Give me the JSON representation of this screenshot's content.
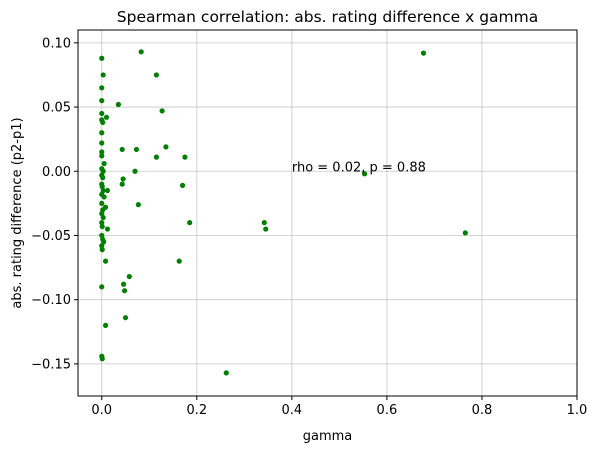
{
  "chart_data": {
    "type": "scatter",
    "title": "Spearman correlation: abs. rating difference x gamma",
    "xlabel": "gamma",
    "ylabel": "abs. rating difference (p2-p1)",
    "xlim": [
      -0.05,
      1.0
    ],
    "ylim": [
      -0.175,
      0.11
    ],
    "xticks": [
      0.0,
      0.2,
      0.4,
      0.6,
      0.8,
      1.0
    ],
    "xtick_labels": [
      "0.0",
      "0.2",
      "0.4",
      "0.6",
      "0.8",
      "1.0"
    ],
    "yticks": [
      -0.15,
      -0.1,
      -0.05,
      0.0,
      0.05,
      0.1
    ],
    "ytick_labels": [
      "−0.15",
      "−0.10",
      "−0.05",
      "0.00",
      "0.05",
      "0.10"
    ],
    "grid": true,
    "marker_color": "#008000",
    "annotation": {
      "text": "rho = 0.02, p = 0.88",
      "x": 0.4,
      "y": 0.0
    },
    "series": [
      {
        "points": [
          [
            0.0,
            0.088
          ],
          [
            0.003,
            0.075
          ],
          [
            0.0,
            0.065
          ],
          [
            0.0,
            0.055
          ],
          [
            0.0,
            0.045
          ],
          [
            0.0,
            0.04
          ],
          [
            0.002,
            0.038
          ],
          [
            0.01,
            0.042
          ],
          [
            0.0,
            0.03
          ],
          [
            0.0,
            0.022
          ],
          [
            0.0,
            0.015
          ],
          [
            0.0,
            0.012
          ],
          [
            0.005,
            0.006
          ],
          [
            0.0,
            0.002
          ],
          [
            0.003,
            0.0
          ],
          [
            0.0,
            -0.003
          ],
          [
            0.002,
            -0.005
          ],
          [
            0.0,
            -0.01
          ],
          [
            0.001,
            -0.012
          ],
          [
            0.003,
            -0.015
          ],
          [
            0.0,
            -0.018
          ],
          [
            0.005,
            -0.02
          ],
          [
            0.0,
            -0.025
          ],
          [
            0.002,
            -0.03
          ],
          [
            0.008,
            -0.028
          ],
          [
            0.0,
            -0.033
          ],
          [
            0.003,
            -0.036
          ],
          [
            0.0,
            -0.04
          ],
          [
            0.001,
            -0.043
          ],
          [
            0.012,
            -0.045
          ],
          [
            0.0,
            -0.05
          ],
          [
            0.002,
            -0.053
          ],
          [
            0.004,
            -0.055
          ],
          [
            0.0,
            -0.058
          ],
          [
            0.001,
            -0.061
          ],
          [
            0.008,
            -0.07
          ],
          [
            0.0,
            -0.09
          ],
          [
            0.008,
            -0.12
          ],
          [
            0.0,
            -0.144
          ],
          [
            0.001,
            -0.146
          ],
          [
            0.012,
            -0.015
          ],
          [
            0.035,
            0.052
          ],
          [
            0.043,
            0.017
          ],
          [
            0.045,
            -0.006
          ],
          [
            0.043,
            -0.01
          ],
          [
            0.046,
            -0.088
          ],
          [
            0.048,
            -0.093
          ],
          [
            0.05,
            -0.114
          ],
          [
            0.058,
            -0.082
          ],
          [
            0.07,
            0.0
          ],
          [
            0.073,
            0.017
          ],
          [
            0.077,
            -0.026
          ],
          [
            0.083,
            0.093
          ],
          [
            0.115,
            0.075
          ],
          [
            0.115,
            0.011
          ],
          [
            0.127,
            0.047
          ],
          [
            0.135,
            0.019
          ],
          [
            0.163,
            -0.07
          ],
          [
            0.17,
            -0.011
          ],
          [
            0.175,
            0.011
          ],
          [
            0.185,
            -0.04
          ],
          [
            0.262,
            -0.157
          ],
          [
            0.342,
            -0.04
          ],
          [
            0.345,
            -0.045
          ],
          [
            0.553,
            -0.002
          ],
          [
            0.677,
            0.092
          ],
          [
            0.765,
            -0.048
          ]
        ]
      }
    ]
  }
}
